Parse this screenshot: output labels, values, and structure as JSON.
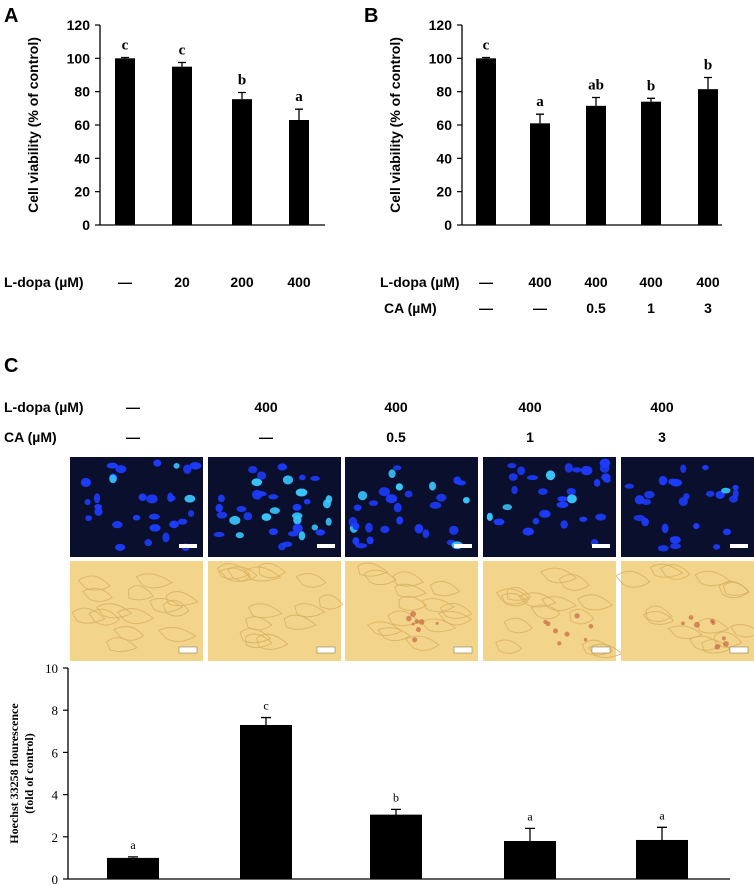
{
  "panels": {
    "a": "A",
    "b": "B",
    "c": "C"
  },
  "treatment_rows": {
    "ldopa_label": "L-dopa (µM)",
    "ca_label": "CA (µM)",
    "a_ldopa": [
      "—",
      "20",
      "200",
      "400"
    ],
    "b_ldopa": [
      "—",
      "400",
      "400",
      "400",
      "400"
    ],
    "b_ca": [
      "—",
      "—",
      "0.5",
      "1",
      "3"
    ],
    "c_ldopa": [
      "—",
      "400",
      "400",
      "400",
      "400"
    ],
    "c_ca": [
      "—",
      "—",
      "0.5",
      "1",
      "3"
    ]
  },
  "colors": {
    "bar": "#000000",
    "fluorescence_bg": "#0a0f2e",
    "nucleus": "#1d3cff",
    "nucleus_bright": "#39c8ff",
    "brightfield_bg": "#f2d48a",
    "brightfield_cell": "#d8b060"
  },
  "micrographs": {
    "fluorescence": "Hoechst-stained nuclei",
    "brightfield": "phase-contrast cells"
  },
  "chart_data": [
    {
      "id": "A",
      "type": "bar",
      "ylabel": "Cell viability (% of control)",
      "xlabel": "",
      "ylim": [
        0,
        120
      ],
      "yticks": [
        0,
        20,
        40,
        60,
        80,
        100,
        120
      ],
      "categories": [
        "—",
        "20",
        "200",
        "400"
      ],
      "values": [
        100,
        95,
        75.5,
        63
      ],
      "errors": [
        0.5,
        2.5,
        4,
        6.5
      ],
      "letters": [
        "c",
        "c",
        "b",
        "a"
      ]
    },
    {
      "id": "B",
      "type": "bar",
      "ylabel": "Cell viability (% of control)",
      "xlabel": "",
      "ylim": [
        0,
        120
      ],
      "yticks": [
        0,
        20,
        40,
        60,
        80,
        100,
        120
      ],
      "categories": [
        "—",
        "400",
        "400 + 0.5",
        "400 + 1",
        "400 + 3"
      ],
      "values": [
        100,
        61,
        71.5,
        74,
        81.5
      ],
      "errors": [
        0.5,
        5.5,
        5,
        2,
        7
      ],
      "letters": [
        "c",
        "a",
        "ab",
        "b",
        "b"
      ]
    },
    {
      "id": "C",
      "type": "bar",
      "ylabel": "Hoechst 33258 flourescence (fold of control)",
      "xlabel": "",
      "ylim": [
        0,
        10
      ],
      "yticks": [
        0,
        2,
        4,
        6,
        8,
        10
      ],
      "categories": [
        "—",
        "400",
        "400 + 0.5",
        "400 + 1",
        "400 + 3"
      ],
      "values": [
        1.0,
        7.3,
        3.05,
        1.8,
        1.85
      ],
      "errors": [
        0.05,
        0.35,
        0.25,
        0.6,
        0.6
      ],
      "letters": [
        "a",
        "c",
        "b",
        "a",
        "a"
      ]
    }
  ]
}
